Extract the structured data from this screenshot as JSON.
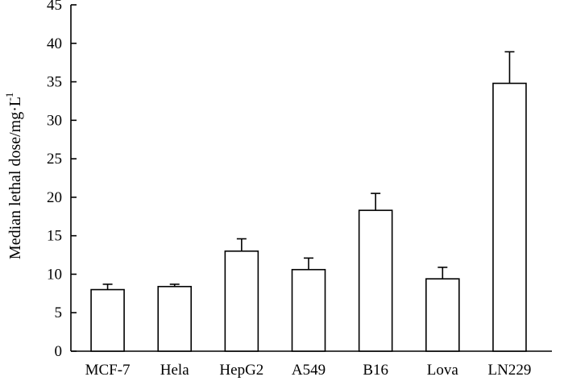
{
  "chart_data": {
    "type": "bar",
    "title": "",
    "xlabel": "",
    "ylabel": "Median lethal dose/mg·L",
    "ylabel_superscript": "-1",
    "ylim": [
      0,
      45
    ],
    "yticks": [
      "0",
      "5",
      "10",
      "15",
      "20",
      "25",
      "30",
      "35",
      "40",
      "45"
    ],
    "categories": [
      "MCF-7",
      "Hela",
      "HepG2",
      "A549",
      "B16",
      "Lova",
      "LN229"
    ],
    "values": [
      8.0,
      8.4,
      13.0,
      10.6,
      18.3,
      9.4,
      34.8
    ],
    "errors": [
      0.7,
      0.3,
      1.6,
      1.5,
      2.2,
      1.5,
      4.1
    ],
    "grid": false,
    "bar_color": "#ffffff",
    "edge_color": "#000000"
  }
}
